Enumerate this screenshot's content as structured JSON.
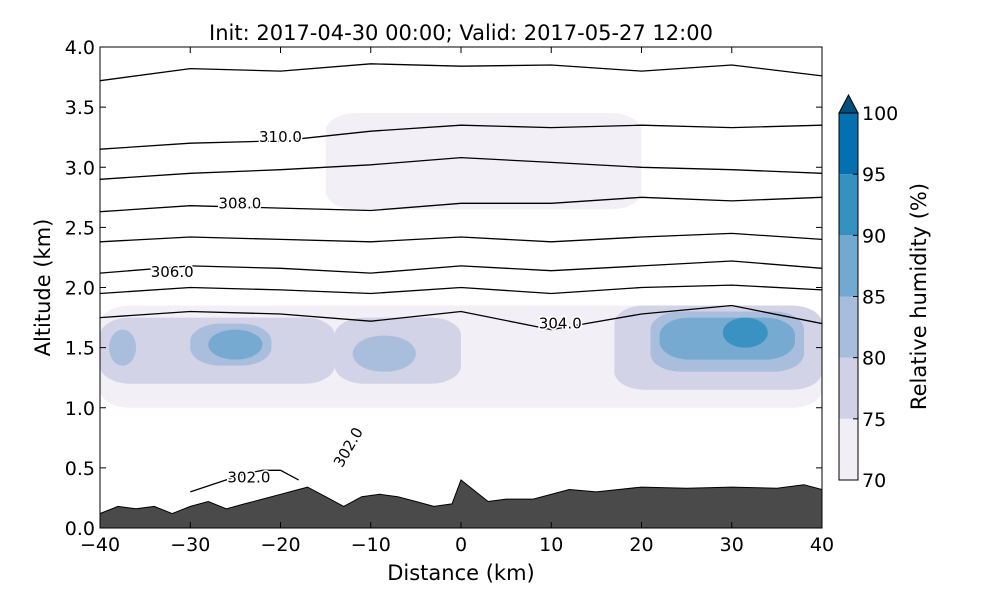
{
  "chart_data": {
    "type": "contour",
    "title": "Init: 2017-04-30 00:00; Valid: 2017-05-27 12:00",
    "xlabel": "Distance (km)",
    "ylabel": "Altitude (km)",
    "xlim": [
      -40,
      40
    ],
    "ylim": [
      0.0,
      4.0
    ],
    "x_ticks": [
      -40,
      -30,
      -20,
      -10,
      0,
      10,
      20,
      30,
      40
    ],
    "x_tick_labels": [
      "−40",
      "−30",
      "−20",
      "−10",
      "0",
      "10",
      "20",
      "30",
      "40"
    ],
    "y_ticks": [
      0.0,
      0.5,
      1.0,
      1.5,
      2.0,
      2.5,
      3.0,
      3.5,
      4.0
    ],
    "y_tick_labels": [
      "0.0",
      "0.5",
      "1.0",
      "1.5",
      "2.0",
      "2.5",
      "3.0",
      "3.5",
      "4.0"
    ],
    "colorbar": {
      "label": "Relative humidity (%)",
      "levels": [
        70,
        75,
        80,
        85,
        90,
        95,
        100
      ],
      "tick_labels": [
        "70",
        "75",
        "80",
        "85",
        "90",
        "95",
        "100"
      ],
      "colors": [
        "#f1eef6",
        "#d0d1e6",
        "#a6bddb",
        "#74a9cf",
        "#3690c0",
        "#0570b0",
        "#045a8d"
      ],
      "extend_color": "#034e7b"
    },
    "terrain": {
      "color": "#4a4a4a",
      "x": [
        -40,
        -38,
        -36,
        -34,
        -32,
        -30,
        -28,
        -26,
        -24,
        -22,
        -20,
        -18,
        -17,
        -15,
        -13,
        -11,
        -9,
        -7,
        -5,
        -3,
        -1,
        0,
        1,
        3,
        5,
        8,
        12,
        15,
        20,
        25,
        30,
        35,
        38,
        40
      ],
      "z": [
        0.12,
        0.18,
        0.16,
        0.18,
        0.12,
        0.18,
        0.22,
        0.16,
        0.2,
        0.24,
        0.28,
        0.32,
        0.34,
        0.26,
        0.18,
        0.26,
        0.28,
        0.26,
        0.22,
        0.18,
        0.2,
        0.4,
        0.34,
        0.22,
        0.24,
        0.24,
        0.32,
        0.3,
        0.34,
        0.33,
        0.34,
        0.33,
        0.36,
        0.32
      ]
    },
    "rh_regions": [
      {
        "level": 70,
        "x_range": [
          -40,
          40
        ],
        "z_range": [
          1.0,
          1.85
        ]
      },
      {
        "level": 70,
        "x_range": [
          -15,
          20
        ],
        "z_range": [
          2.65,
          3.45
        ]
      },
      {
        "level": 75,
        "x_range": [
          -40,
          -14
        ],
        "z_range": [
          1.2,
          1.75
        ]
      },
      {
        "level": 75,
        "x_range": [
          -14,
          0
        ],
        "z_range": [
          1.2,
          1.75
        ]
      },
      {
        "level": 75,
        "x_range": [
          17,
          40
        ],
        "z_range": [
          1.15,
          1.85
        ]
      },
      {
        "level": 80,
        "x_range": [
          -39,
          -36
        ],
        "z_range": [
          1.35,
          1.65
        ]
      },
      {
        "level": 80,
        "x_range": [
          -30,
          -21
        ],
        "z_range": [
          1.35,
          1.7
        ]
      },
      {
        "level": 80,
        "x_range": [
          -12,
          -5
        ],
        "z_range": [
          1.3,
          1.6
        ]
      },
      {
        "level": 80,
        "x_range": [
          21,
          38
        ],
        "z_range": [
          1.3,
          1.8
        ]
      },
      {
        "level": 85,
        "x_range": [
          -28,
          -22
        ],
        "z_range": [
          1.4,
          1.65
        ]
      },
      {
        "level": 85,
        "x_range": [
          22,
          37
        ],
        "z_range": [
          1.4,
          1.75
        ]
      },
      {
        "level": 90,
        "x_range": [
          29,
          34
        ],
        "z_range": [
          1.5,
          1.75
        ]
      }
    ],
    "theta_contours": [
      {
        "label": "302.0",
        "x": [
          -30,
          -28,
          -26,
          -24,
          -22,
          -20,
          -18
        ],
        "z": [
          0.3,
          0.35,
          0.4,
          0.45,
          0.48,
          0.48,
          0.4
        ],
        "label_x": -23.5,
        "label_z": 0.42
      },
      {
        "label": "304.0",
        "x": [
          -40,
          -30,
          -20,
          -10,
          0,
          10,
          20,
          30,
          40
        ],
        "z": [
          1.75,
          1.8,
          1.78,
          1.72,
          1.8,
          1.65,
          1.78,
          1.85,
          1.7
        ],
        "label_x": 11,
        "label_z": 1.7
      },
      {
        "label": "",
        "x": [
          -40,
          -30,
          -20,
          -10,
          0,
          10,
          20,
          30,
          40
        ],
        "z": [
          1.95,
          2.0,
          1.98,
          1.95,
          2.0,
          1.95,
          2.0,
          2.02,
          1.98
        ]
      },
      {
        "label": "306.0",
        "x": [
          -40,
          -30,
          -20,
          -10,
          0,
          10,
          20,
          30,
          40
        ],
        "z": [
          2.12,
          2.18,
          2.16,
          2.12,
          2.18,
          2.14,
          2.18,
          2.22,
          2.16
        ],
        "label_x": -32,
        "label_z": 2.13
      },
      {
        "label": "",
        "x": [
          -40,
          -30,
          -20,
          -10,
          0,
          10,
          20,
          30,
          40
        ],
        "z": [
          2.38,
          2.42,
          2.4,
          2.38,
          2.42,
          2.38,
          2.42,
          2.45,
          2.4
        ]
      },
      {
        "label": "308.0",
        "x": [
          -40,
          -30,
          -20,
          -10,
          0,
          10,
          20,
          30,
          40
        ],
        "z": [
          2.63,
          2.68,
          2.66,
          2.64,
          2.7,
          2.7,
          2.75,
          2.72,
          2.75
        ],
        "label_x": -24.5,
        "label_z": 2.7
      },
      {
        "label": "",
        "x": [
          -40,
          -30,
          -20,
          -10,
          0,
          10,
          20,
          30,
          40
        ],
        "z": [
          2.9,
          2.95,
          2.98,
          3.02,
          3.08,
          3.04,
          3.0,
          2.98,
          2.95
        ]
      },
      {
        "label": "310.0",
        "x": [
          -40,
          -30,
          -20,
          -10,
          0,
          10,
          20,
          30,
          40
        ],
        "z": [
          3.15,
          3.2,
          3.22,
          3.3,
          3.35,
          3.33,
          3.35,
          3.33,
          3.35
        ],
        "label_x": -20,
        "label_z": 3.25
      },
      {
        "label": "",
        "x": [
          -40,
          -30,
          -20,
          -10,
          0,
          10,
          20,
          30,
          40
        ],
        "z": [
          3.72,
          3.82,
          3.8,
          3.86,
          3.84,
          3.85,
          3.8,
          3.85,
          3.76
        ]
      }
    ],
    "theta_label_302_rotated": "302.0"
  }
}
